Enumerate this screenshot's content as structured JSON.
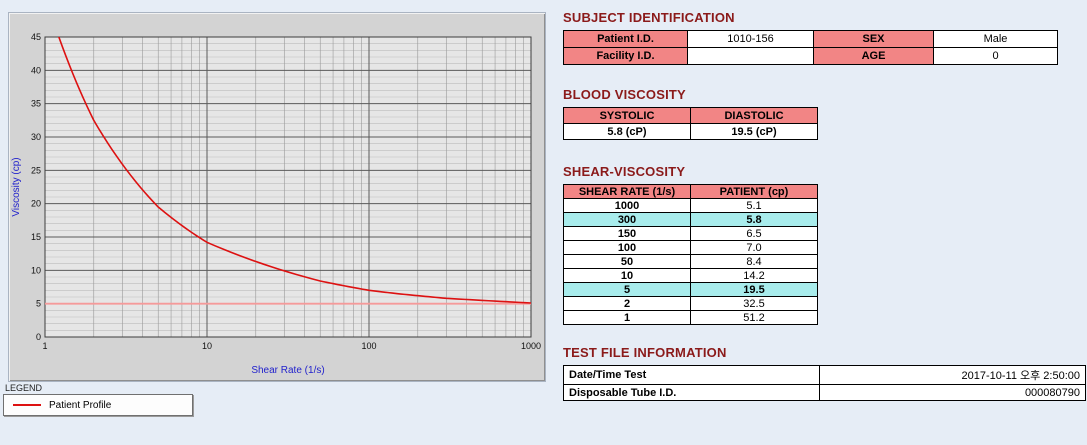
{
  "subject_identification": {
    "title": "SUBJECT IDENTIFICATION",
    "rows": [
      {
        "label1": "Patient I.D.",
        "value1": "1010-156",
        "label2": "SEX",
        "value2": "Male"
      },
      {
        "label1": "Facility I.D.",
        "value1": "",
        "label2": "AGE",
        "value2": "0"
      }
    ]
  },
  "blood_viscosity": {
    "title": "BLOOD VISCOSITY",
    "headers": [
      "SYSTOLIC",
      "DIASTOLIC"
    ],
    "values": [
      "5.8 (cP)",
      "19.5 (cP)"
    ]
  },
  "shear_viscosity": {
    "title": "SHEAR-VISCOSITY",
    "headers": [
      "SHEAR RATE (1/s)",
      "PATIENT (cp)"
    ],
    "rows": [
      {
        "rate": "1000",
        "patient": "5.1",
        "highlight": false
      },
      {
        "rate": "300",
        "patient": "5.8",
        "highlight": true
      },
      {
        "rate": "150",
        "patient": "6.5",
        "highlight": false
      },
      {
        "rate": "100",
        "patient": "7.0",
        "highlight": false
      },
      {
        "rate": "50",
        "patient": "8.4",
        "highlight": false
      },
      {
        "rate": "10",
        "patient": "14.2",
        "highlight": false
      },
      {
        "rate": "5",
        "patient": "19.5",
        "highlight": true
      },
      {
        "rate": "2",
        "patient": "32.5",
        "highlight": false
      },
      {
        "rate": "1",
        "patient": "51.2",
        "highlight": false
      }
    ]
  },
  "test_file_information": {
    "title": "TEST FILE INFORMATION",
    "rows": [
      {
        "label": "Date/Time Test",
        "value": "2017-10-11  오후 2:50:00"
      },
      {
        "label": "Disposable Tube I.D.",
        "value": "000080790"
      }
    ]
  },
  "legend": {
    "title": "LEGEND",
    "series": "Patient Profile"
  },
  "chart_data": {
    "type": "line",
    "title": "",
    "xlabel": "Shear Rate (1/s)",
    "ylabel": "Viscosity (cp)",
    "x_scale": "log",
    "xlim": [
      1,
      1000
    ],
    "ylim": [
      0,
      45
    ],
    "x_ticks": [
      1,
      10,
      100,
      1000
    ],
    "y_ticks": [
      0,
      5,
      10,
      15,
      20,
      25,
      30,
      35,
      40,
      45
    ],
    "grid": true,
    "legend_position": "bottom-left",
    "series": [
      {
        "name": "Patient Profile",
        "color": "#dd1111",
        "x": [
          1,
          2,
          5,
          10,
          50,
          100,
          150,
          300,
          1000
        ],
        "y": [
          51.2,
          32.5,
          19.5,
          14.2,
          8.4,
          7.0,
          6.5,
          5.8,
          5.1
        ]
      }
    ],
    "reference_lines": [
      {
        "y": 5,
        "color": "#f59a9a"
      }
    ]
  }
}
